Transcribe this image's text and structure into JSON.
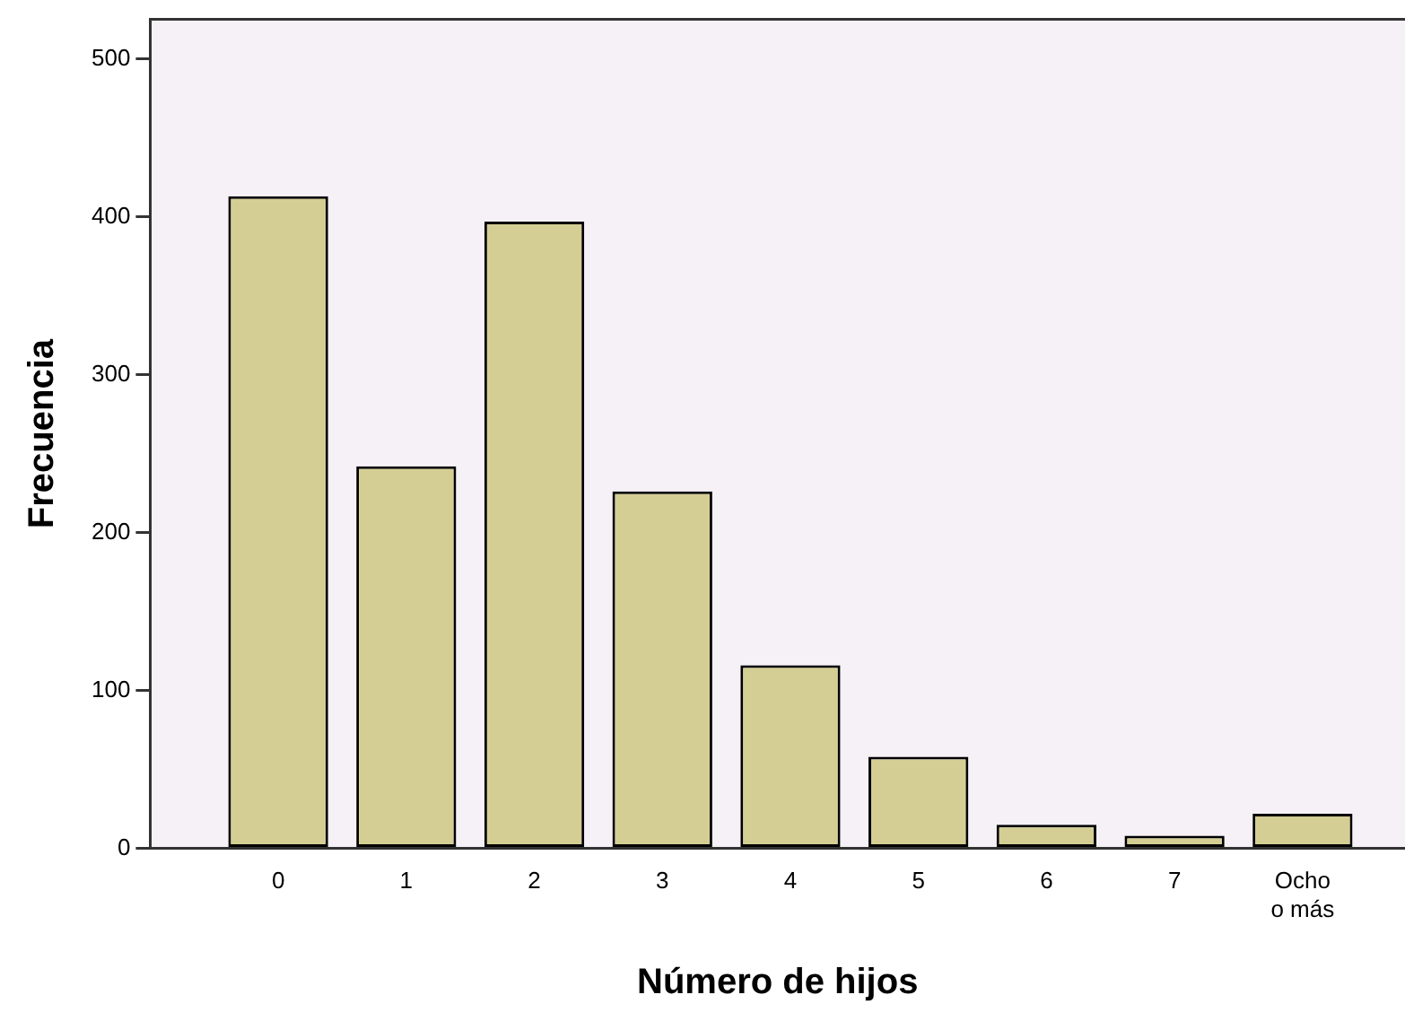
{
  "chart_data": {
    "type": "bar",
    "xlabel": "Número de hijos",
    "ylabel": "Frecuencia",
    "categories": [
      "0",
      "1",
      "2",
      "3",
      "4",
      "5",
      "6",
      "7",
      "Ocho o más"
    ],
    "values": [
      413,
      242,
      397,
      226,
      116,
      58,
      15,
      8,
      22
    ],
    "color": "#d4ce94",
    "ylim": [
      0,
      525
    ],
    "yticks": [
      0,
      100,
      200,
      300,
      400,
      500
    ],
    "grid": false,
    "legend": false
  }
}
